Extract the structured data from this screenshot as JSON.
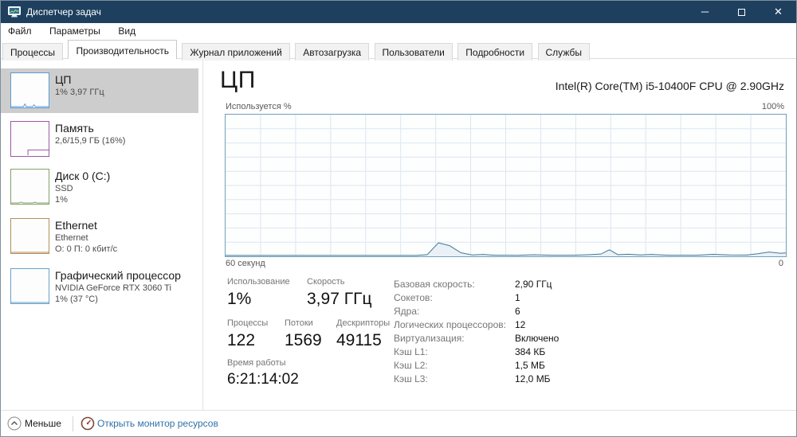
{
  "window": {
    "title": "Диспетчер задач",
    "controls": {
      "minimize": "─",
      "close": "✕"
    }
  },
  "menu": {
    "items": [
      {
        "label": "Файл"
      },
      {
        "label": "Параметры"
      },
      {
        "label": "Вид"
      }
    ]
  },
  "tabs": [
    {
      "label": "Процессы"
    },
    {
      "label": "Производительность"
    },
    {
      "label": "Журнал приложений"
    },
    {
      "label": "Автозагрузка"
    },
    {
      "label": "Пользователи"
    },
    {
      "label": "Подробности"
    },
    {
      "label": "Службы"
    }
  ],
  "sidebar": {
    "items": [
      {
        "title": "ЦП",
        "line1": "1% 3,97 ГГц",
        "line2": "",
        "color": "#5b9bd5"
      },
      {
        "title": "Память",
        "line1": "2,6/15,9 ГБ (16%)",
        "line2": "",
        "color": "#9b59a5"
      },
      {
        "title": "Диск 0 (C:)",
        "line1": "SSD",
        "line2": "1%",
        "color": "#84a06b"
      },
      {
        "title": "Ethernet",
        "line1": "Ethernet",
        "line2": "О: 0 П: 0 кбит/с",
        "color": "#b39058"
      },
      {
        "title": "Графический процессор",
        "line1": "NVIDIA GeForce RTX 3060 Ti",
        "line2": "1% (37 °C)",
        "color": "#6aa1c8"
      }
    ]
  },
  "main": {
    "title": "ЦП",
    "subtitle": "Intel(R) Core(TM) i5-10400F CPU @ 2.90GHz",
    "chart": {
      "type": "area",
      "top_left_label": "Используется %",
      "top_right_label": "100%",
      "bottom_left_label": "60 секунд",
      "bottom_right_label": "0",
      "ylim": [
        0,
        100
      ],
      "grid_columns": 16,
      "grid_rows": 10,
      "line_color": "#447a99",
      "fill_color": "#e9f1f7",
      "grid_color": "#dbe7f0",
      "points": [
        [
          0,
          0.6
        ],
        [
          34,
          0.6
        ],
        [
          36,
          1.2
        ],
        [
          38,
          9.5
        ],
        [
          40,
          7.5
        ],
        [
          42,
          2.5
        ],
        [
          44,
          1.0
        ],
        [
          46,
          1.3
        ],
        [
          48,
          0.8
        ],
        [
          52,
          0.7
        ],
        [
          55,
          1.1
        ],
        [
          58,
          0.8
        ],
        [
          62,
          0.8
        ],
        [
          65,
          1.2
        ],
        [
          67,
          1.6
        ],
        [
          68.5,
          4.6
        ],
        [
          70,
          1.2
        ],
        [
          72,
          1.5
        ],
        [
          74,
          1.0
        ],
        [
          76,
          1.3
        ],
        [
          79,
          0.8
        ],
        [
          84,
          0.8
        ],
        [
          87,
          1.4
        ],
        [
          90,
          1.0
        ],
        [
          93,
          0.9
        ],
        [
          95,
          1.8
        ],
        [
          97,
          3.0
        ],
        [
          99,
          2.2
        ],
        [
          100,
          2.4
        ]
      ]
    },
    "stats": {
      "usage_label": "Использование",
      "usage_value": "1%",
      "speed_label": "Скорость",
      "speed_value": "3,97 ГГц",
      "processes_label": "Процессы",
      "processes_value": "122",
      "threads_label": "Потоки",
      "threads_value": "1569",
      "handles_label": "Дескрипторы",
      "handles_value": "49115",
      "uptime_label": "Время работы",
      "uptime_value": "6:21:14:02"
    },
    "details": [
      {
        "label": "Базовая скорость:",
        "value": "2,90 ГГц"
      },
      {
        "label": "Сокетов:",
        "value": "1"
      },
      {
        "label": "Ядра:",
        "value": "6"
      },
      {
        "label": "Логических процессоров:",
        "value": "12"
      },
      {
        "label": "Виртуализация:",
        "value": "Включено"
      },
      {
        "label": "Кэш L1:",
        "value": "384 КБ"
      },
      {
        "label": "Кэш L2:",
        "value": "1,5 МБ"
      },
      {
        "label": "Кэш L3:",
        "value": "12,0 МБ"
      }
    ]
  },
  "footer": {
    "less_label": "Меньше",
    "resmon_label": "Открыть монитор ресурсов",
    "link_color": "#3071a9"
  },
  "colors": {
    "titlebar": "#1e405e",
    "selected_item": "#cdcdcd"
  }
}
